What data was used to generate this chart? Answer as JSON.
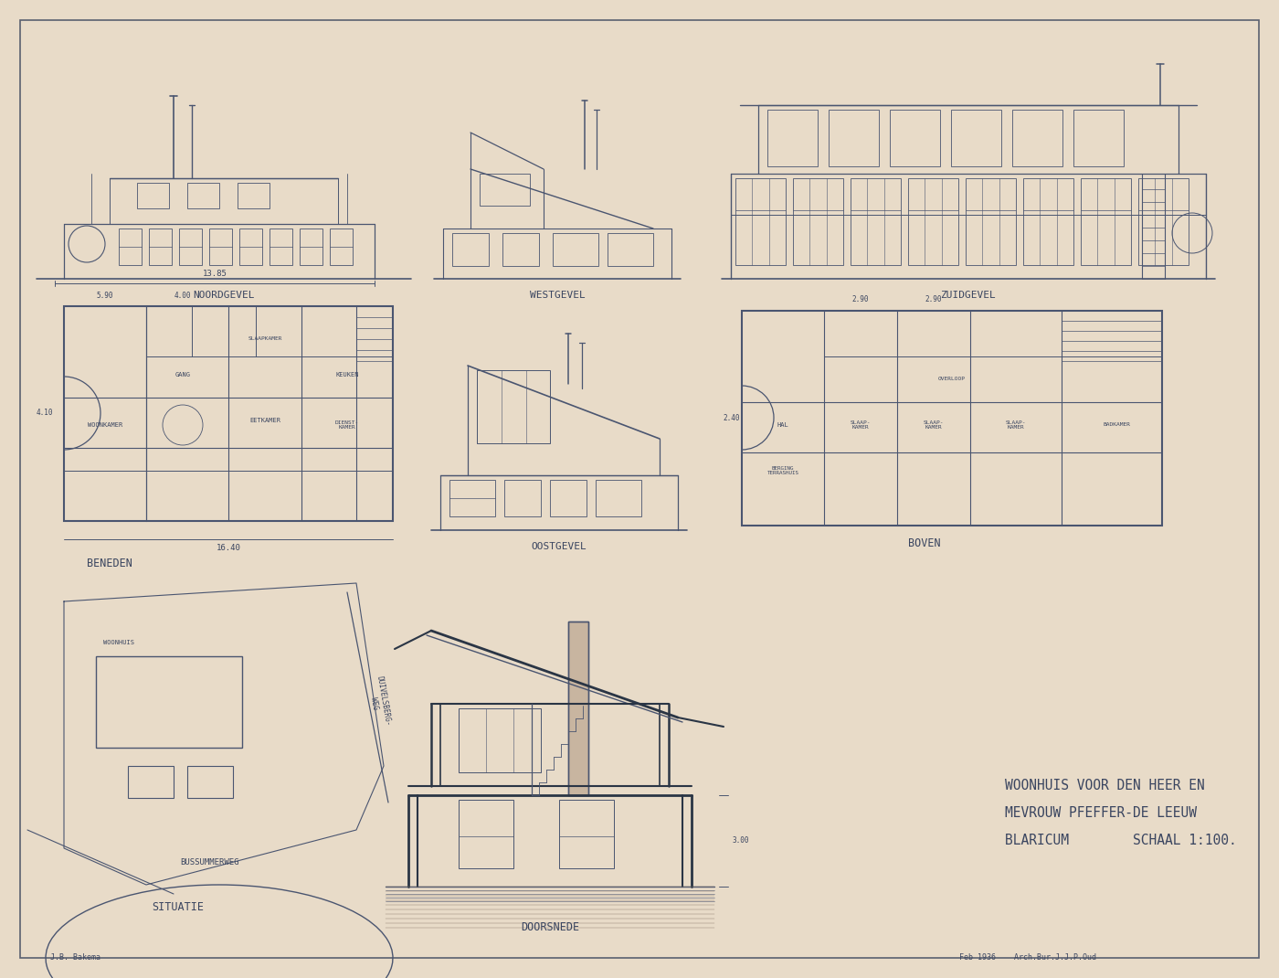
{
  "bg": "#e8dbc8",
  "lc": "#4a5570",
  "tc": "#3a4560",
  "border": "#5a6070",
  "title_line1": "WOONHUIS VOOR DEN HEER EN",
  "title_line2": "MEVROUW PFEFFER-DE LEEUW",
  "title_line3": "BLARICUM        SCHAAL 1:100.",
  "label_noord": "NOORDGEVEL",
  "label_west": "WESTGEVEL",
  "label_zuid": "ZUIDGEVEL",
  "label_beneden": "BENEDEN",
  "label_oost": "OOSTGEVEL",
  "label_boven": "BOVEN",
  "label_situatie": "SITUATIE",
  "label_doorsnede": "DOORSNEDE",
  "footer_left": "J.B. Bakema",
  "footer_right": "Feb 1936    Arch.Bur.J.J.P.Oud",
  "dim_1385": "13.85",
  "dim_1640": "16.40"
}
